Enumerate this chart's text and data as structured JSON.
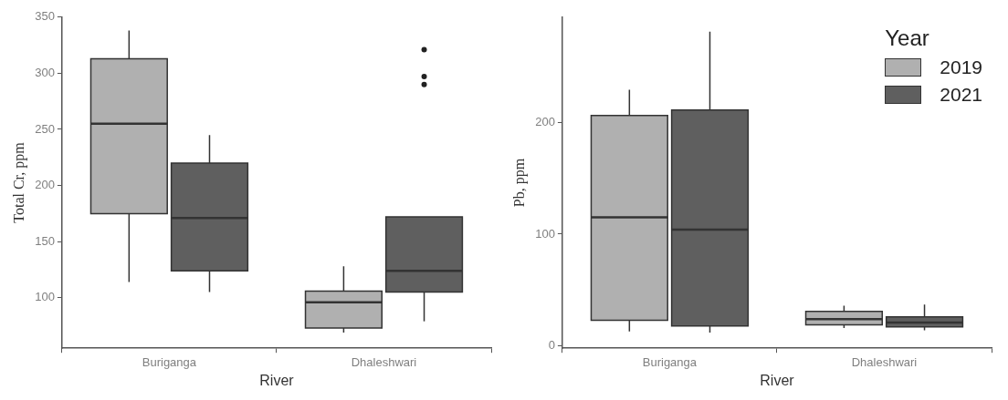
{
  "chart_data": [
    {
      "type": "box",
      "categories": [
        "Buriganga",
        "Dhaleshwari"
      ],
      "xlabel": "River",
      "ylabel": "Total Cr, ppm",
      "ylim": [
        55,
        350
      ],
      "yticks": [
        100,
        150,
        200,
        250,
        300,
        350
      ],
      "grid": false,
      "series": [
        {
          "color": "#b0b0b0",
          "boxes": [
            {
              "low": 114,
              "q1": 175,
              "median": 255,
              "q3": 313,
              "high": 338
            },
            {
              "low": 69,
              "q1": 73,
              "median": 96,
              "q3": 106,
              "high": 128
            }
          ]
        },
        {
          "color": "#5f5f5f",
          "boxes": [
            {
              "low": 105,
              "q1": 124,
              "median": 171,
              "q3": 220,
              "high": 245
            },
            {
              "low": 79,
              "q1": 105,
              "median": 124,
              "q3": 172,
              "high": 172,
              "outliers": [
                321,
                297,
                290
              ]
            }
          ]
        }
      ]
    },
    {
      "type": "box",
      "categories": [
        "Buriganga",
        "Dhaleshwari"
      ],
      "xlabel": "River",
      "ylabel": "Pb, ppm",
      "ylim": [
        -2,
        294
      ],
      "yticks": [
        0,
        100,
        200
      ],
      "grid": false,
      "legend": "top right",
      "legend_title": "Year",
      "series": [
        {
          "name": "2019",
          "color": "#b0b0b0",
          "boxes": [
            {
              "low": 13,
              "q1": 23,
              "median": 115,
              "q3": 206,
              "high": 229
            },
            {
              "low": 16,
              "q1": 19,
              "median": 24,
              "q3": 31,
              "high": 36
            }
          ]
        },
        {
          "name": "2021",
          "color": "#5f5f5f",
          "boxes": [
            {
              "low": 12,
              "q1": 18,
              "median": 104,
              "q3": 211,
              "high": 281
            },
            {
              "low": 14,
              "q1": 17,
              "median": 21,
              "q3": 26,
              "high": 37
            }
          ]
        }
      ]
    }
  ]
}
